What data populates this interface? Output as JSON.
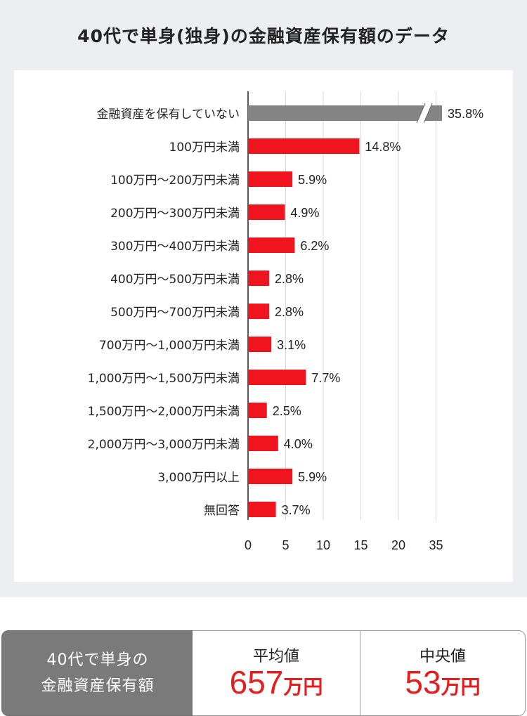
{
  "title": "40代で単身(独身)の金融資産保有額のデータ",
  "chart_data": {
    "type": "bar",
    "orientation": "horizontal",
    "categories": [
      "金融資産を保有していない",
      "100万円未満",
      "100万円～200万円未満",
      "200万円～300万円未満",
      "300万円～400万円未満",
      "400万円～500万円未満",
      "500万円～700万円未満",
      "700万円～1,000万円未満",
      "1,000万円～1,500万円未満",
      "1,500万円～2,000万円未満",
      "2,000万円～3,000万円未満",
      "3,000万円以上",
      "無回答"
    ],
    "values": [
      35.8,
      14.8,
      5.9,
      4.9,
      6.2,
      2.8,
      2.8,
      3.1,
      7.7,
      2.5,
      4.0,
      5.9,
      3.7
    ],
    "value_labels": [
      "35.8%",
      "14.8%",
      "5.9%",
      "4.9%",
      "6.2%",
      "2.8%",
      "2.8%",
      "3.1%",
      "7.7%",
      "2.5%",
      "4.0%",
      "5.9%",
      "3.7%"
    ],
    "x_ticks": [
      "0",
      "5",
      "10",
      "15",
      "20",
      "35"
    ],
    "axis_break": [
      23,
      33
    ],
    "colors": {
      "main": "#f0141e",
      "highlight": "#848484",
      "grid": "#d9d9d9",
      "axis": "#222222"
    },
    "grid": true
  },
  "summary": {
    "label_line1": "40代で単身の",
    "label_line2": "金融資産保有額",
    "average": {
      "heading": "平均値",
      "value": "657",
      "unit": "万円"
    },
    "median": {
      "heading": "中央値",
      "value": "53",
      "unit": "万円"
    }
  }
}
